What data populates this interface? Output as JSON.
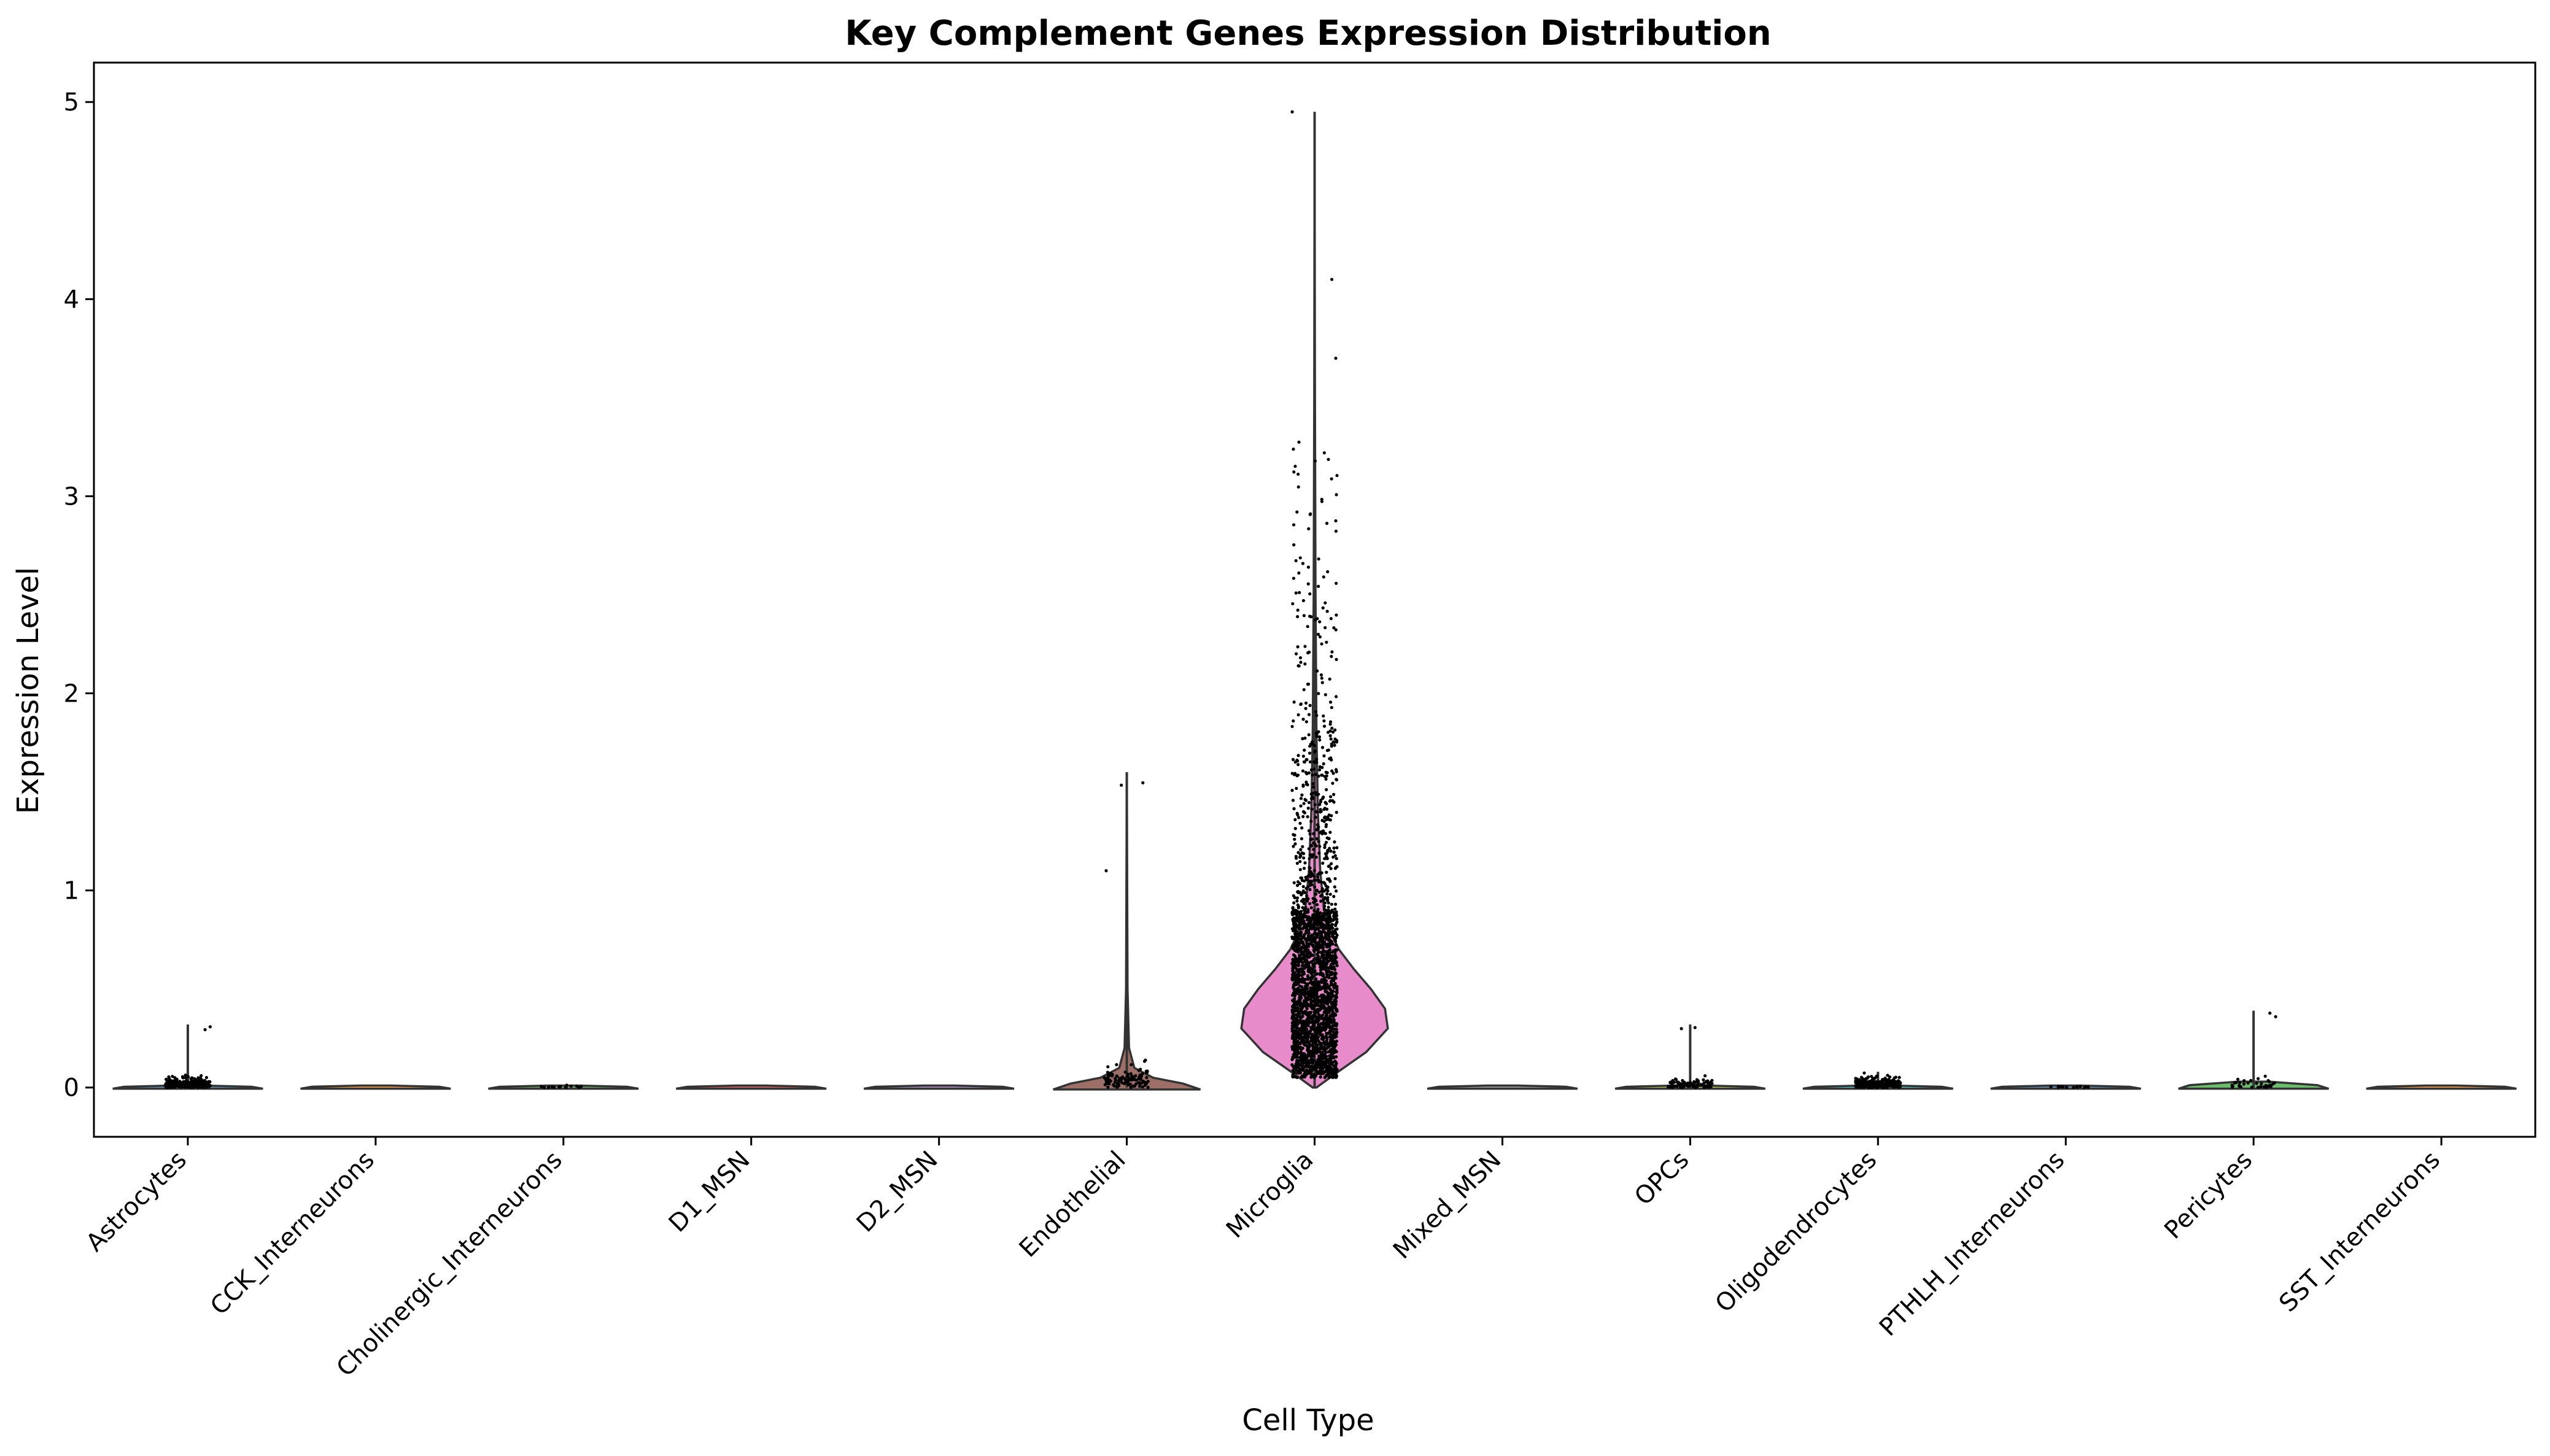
{
  "chart_data": {
    "type": "violin",
    "title": "Key Complement Genes Expression Distribution",
    "xlabel": "Cell Type",
    "ylabel": "Expression Level",
    "ylim": [
      -0.25,
      5.2
    ],
    "yticks": [
      0,
      1,
      2,
      3,
      4,
      5
    ],
    "grid": false,
    "categories": [
      "Astrocytes",
      "CCK_Interneurons",
      "Cholinergic_Interneurons",
      "D1_MSN",
      "D2_MSN",
      "Endothelial",
      "Microglia",
      "Mixed_MSN",
      "OPCs",
      "Oligodendrocytes",
      "PTHLH_Interneurons",
      "Pericytes",
      "SST_Interneurons"
    ],
    "colors": [
      "#1f77b4",
      "#ff7f0e",
      "#2ca02c",
      "#d62728",
      "#9467bd",
      "#8c564b",
      "#e377c2",
      "#7f7f7f",
      "#bcbd22",
      "#17becf",
      "#1f77b4",
      "#2ca02c",
      "#ff7f0e"
    ],
    "series": [
      {
        "category": "Astrocytes",
        "max": 0.32,
        "median": 0.0,
        "density_peak": 0.0,
        "spread": 0.04
      },
      {
        "category": "CCK_Interneurons",
        "max": 0.01,
        "median": 0.0,
        "density_peak": 0.0,
        "spread": 0.005
      },
      {
        "category": "Cholinergic_Interneurons",
        "max": 0.03,
        "median": 0.0,
        "density_peak": 0.0,
        "spread": 0.01
      },
      {
        "category": "D1_MSN",
        "max": 0.0,
        "median": 0.0,
        "density_peak": 0.0,
        "spread": 0.0
      },
      {
        "category": "D2_MSN",
        "max": 0.0,
        "median": 0.0,
        "density_peak": 0.0,
        "spread": 0.0
      },
      {
        "category": "Endothelial",
        "max": 1.6,
        "median": 0.02,
        "density_peak": 0.03,
        "spread": 0.08
      },
      {
        "category": "Microglia",
        "max": 4.95,
        "median": 0.35,
        "density_peak": 0.3,
        "spread": 0.45
      },
      {
        "category": "Mixed_MSN",
        "max": 0.0,
        "median": 0.0,
        "density_peak": 0.0,
        "spread": 0.0
      },
      {
        "category": "OPCs",
        "max": 0.32,
        "median": 0.0,
        "density_peak": 0.0,
        "spread": 0.03
      },
      {
        "category": "Oligodendrocytes",
        "max": 0.08,
        "median": 0.0,
        "density_peak": 0.0,
        "spread": 0.04
      },
      {
        "category": "PTHLH_Interneurons",
        "max": 0.02,
        "median": 0.0,
        "density_peak": 0.0,
        "spread": 0.005
      },
      {
        "category": "Pericytes",
        "max": 0.39,
        "median": 0.01,
        "density_peak": 0.02,
        "spread": 0.04
      },
      {
        "category": "SST_Interneurons",
        "max": 0.0,
        "median": 0.0,
        "density_peak": 0.0,
        "spread": 0.0
      }
    ]
  }
}
